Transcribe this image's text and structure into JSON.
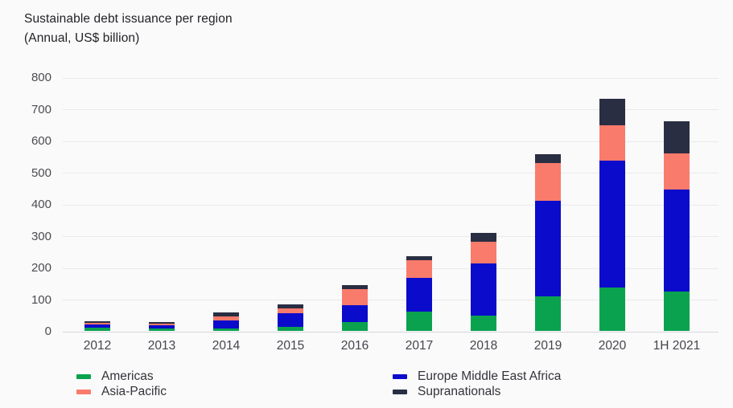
{
  "chart_data": {
    "type": "bar",
    "stacked": true,
    "title": "Sustainable debt issuance per region",
    "subtitle": "(Annual, US$ billion)",
    "categories": [
      "2012",
      "2013",
      "2014",
      "2015",
      "2016",
      "2017",
      "2018",
      "2019",
      "2020",
      "1H 2021"
    ],
    "series": [
      {
        "name": "Americas",
        "color": "#0aa24f",
        "values": [
          10,
          8,
          8,
          14,
          27,
          62,
          48,
          110,
          137,
          125
        ]
      },
      {
        "name": "Europe Middle East Africa",
        "color": "#0b0bcb",
        "values": [
          9,
          10,
          25,
          42,
          55,
          105,
          164,
          300,
          400,
          320
        ]
      },
      {
        "name": "Asia-Pacific",
        "color": "#f97b6c",
        "values": [
          6,
          4,
          12,
          15,
          50,
          55,
          70,
          120,
          110,
          115
        ]
      },
      {
        "name": "Supranationals",
        "color": "#2a2e42",
        "values": [
          4,
          5,
          13,
          12,
          13,
          13,
          27,
          28,
          85,
          100
        ]
      }
    ],
    "totals": [
      29,
      27,
      58,
      83,
      145,
      235,
      309,
      558,
      732,
      660
    ],
    "stack_order_bottom_to_top": [
      "Americas",
      "Europe Middle East Africa",
      "Asia-Pacific",
      "Supranationals"
    ],
    "ylim": [
      0,
      800
    ],
    "yticks": [
      0,
      100,
      200,
      300,
      400,
      500,
      600,
      700,
      800
    ],
    "grid": true,
    "legend_position": "bottom",
    "legend_columns": [
      [
        0,
        2
      ],
      [
        1,
        3
      ]
    ],
    "colors": {
      "background": "#fafafa",
      "grid": "#eaeaec",
      "baseline": "#d8d8dc",
      "axis_text": "#4b4b52",
      "title_text": "#222227"
    }
  }
}
